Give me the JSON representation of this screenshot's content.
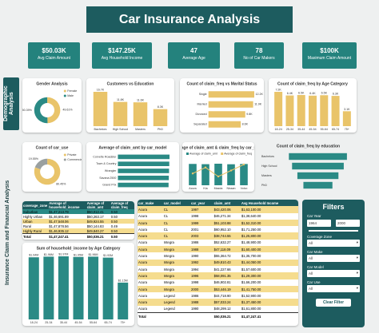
{
  "header": {
    "title": "Car Insurance Analysis"
  },
  "kpis": [
    {
      "value": "$50.03K",
      "label": "Avg Claim Amount"
    },
    {
      "value": "$147.25K",
      "label": "Avg Household Income"
    },
    {
      "value": "47",
      "label": "Average Age"
    },
    {
      "value": "78",
      "label": "No of Car Makers"
    },
    {
      "value": "$100K",
      "label": "Maximum Claim Amount"
    }
  ],
  "sections": [
    "Demographic Analysis",
    "Insurance Claim and Financial Analysis"
  ],
  "chart_data": [
    {
      "type": "donut",
      "title": "Gender Analysis",
      "categories": [
        "Female",
        "Male"
      ],
      "values": [
        49.61,
        50.39
      ],
      "value_labels": [
        "49.61%",
        "50.39%"
      ],
      "colors": [
        "#e9c46a",
        "#2a8a85"
      ]
    },
    {
      "type": "bar",
      "title": "Customers vs Education",
      "categories": [
        "Bachelors",
        "High School",
        "Masters",
        "PhD"
      ],
      "values": [
        16700,
        11800,
        11600,
        8300
      ],
      "value_labels": [
        "16.7K",
        "11.8K",
        "11.6K",
        "8.3K"
      ],
      "color": "#e9c46a"
    },
    {
      "type": "hbar",
      "title": "Count of claim_freq vs Marital Status",
      "categories": [
        "Single",
        "Married",
        "Divorced",
        "Separated"
      ],
      "values": [
        12200,
        11900,
        9800,
        8600
      ],
      "value_labels": [
        "12.2K",
        "11.9K",
        "9.8K",
        "8.6K"
      ],
      "color": "#e9c46a"
    },
    {
      "type": "bar",
      "title": "Count of claim_freq by Age Category",
      "categories": [
        "18-24",
        "25-34",
        "35-44",
        "45-54",
        "55-64",
        "65-74",
        "75+"
      ],
      "values": [
        7180,
        6420,
        6510,
        6380,
        6470,
        6330,
        3120
      ],
      "value_labels": [
        "7.2K",
        "6.4K",
        "6.5K",
        "6.4K",
        "6.5K",
        "6.3K",
        "3.1K"
      ],
      "color": "#e9c46a"
    },
    {
      "type": "donut",
      "title": "Count of car_use",
      "categories": [
        "Private",
        "Commercial"
      ],
      "values": [
        80.45,
        19.55
      ],
      "value_labels": [
        "80.45%",
        "19.55%"
      ],
      "colors": [
        "#e9c46a",
        "#9aa0a0"
      ]
    },
    {
      "type": "hbar",
      "title": "Average of claim_amt by car_model",
      "categories": [
        "Corvette Roadster",
        "Town & Country",
        "Wrangler",
        "Savana 2500",
        "Grand Prix"
      ],
      "values": [
        65100,
        64800,
        64500,
        64200,
        63900
      ],
      "color": "#2a8a85"
    },
    {
      "type": "combo",
      "title": "Average of claim_amt & claim_freq by car_make",
      "categories": [
        "Acura",
        "Kia",
        "Mazda",
        "Nissan",
        "Volvo"
      ],
      "series": [
        {
          "name": "Average of claim_amt",
          "color": "#2a8a85",
          "values": [
            50400,
            49800,
            50900,
            49600,
            50200
          ]
        },
        {
          "name": "Average of claim_freq",
          "color": "#e9c46a",
          "axis": "y2",
          "values": [
            0.49,
            0.51,
            0.48,
            0.5,
            0.52
          ]
        }
      ]
    },
    {
      "type": "funnel",
      "title": "Count of claim_freq by education",
      "categories": [
        "Bachelors",
        "High School",
        "Masters",
        "PhD"
      ],
      "values": [
        8200,
        7300,
        5800,
        4100
      ],
      "color": "#2a8a85"
    },
    {
      "type": "bar",
      "title": "Sum of household_income by Age Category",
      "categories": [
        "18-24",
        "25-34",
        "35-44",
        "45-54",
        "55-64",
        "65-74",
        "75+"
      ],
      "values": [
        1940000,
        1960000,
        1970000,
        1950000,
        1960000,
        1930000,
        1150000
      ],
      "value_labels": [
        "$1.94M",
        "$1.96M",
        "$1.97M",
        "$1.95M",
        "$1.96M",
        "$1.93M",
        "$1.15M"
      ],
      "color": "#2a8a85"
    }
  ],
  "tables": [
    {
      "headers": [
        "coverage_zone",
        "Average of household_income",
        "Average of claim_amt",
        "Average of claim_freq"
      ],
      "highlight_row": 0,
      "rows": [
        [
          "Suburban",
          "$1,47,213.79",
          "$50,012.41",
          "0.50"
        ],
        [
          "Highly Urban",
          "$1,46,691.89",
          "$50,263.17",
          "0.50"
        ],
        [
          "Urban",
          "$1,47,548.06",
          "$49,924.55",
          "0.50"
        ],
        [
          "Rural",
          "$1,47,878.56",
          "$50,144.83",
          "0.49"
        ],
        [
          "Highly Rural",
          "$1,46,935.12",
          "$49,840.27",
          "0.50"
        ]
      ],
      "total": [
        "Total",
        "$1,47,247.41",
        "$50,036.21",
        "0.50"
      ]
    },
    {
      "headers": [
        "car_make",
        "car_model",
        "car_year",
        "claim_amt",
        "Avg Household Income"
      ],
      "rows": [
        [
          "Acura",
          "CL",
          "1997",
          "$43,420.06",
          "$1,63,100.00"
        ],
        [
          "Acura",
          "CL",
          "1998",
          "$46,271.34",
          "$1,38,640.00"
        ],
        [
          "Acura",
          "CL",
          "1999",
          "$51,103.88",
          "$1,52,310.00"
        ],
        [
          "Acura",
          "CL",
          "2001",
          "$60,952.10",
          "$1,71,250.00"
        ],
        [
          "Acura",
          "CL",
          "2003",
          "$38,744.55",
          "$1,25,800.00"
        ],
        [
          "Acura",
          "Integra",
          "1986",
          "$52,632.27",
          "$1,48,900.00"
        ],
        [
          "Acura",
          "Integra",
          "1988",
          "$47,118.09",
          "$1,60,400.00"
        ],
        [
          "Acura",
          "Integra",
          "1990",
          "$55,364.72",
          "$1,35,700.00"
        ],
        [
          "Acura",
          "Integra",
          "1992",
          "$49,810.43",
          "$1,44,050.00"
        ],
        [
          "Acura",
          "Integra",
          "1994",
          "$41,227.66",
          "$1,57,600.00"
        ],
        [
          "Acura",
          "Integra",
          "1996",
          "$58,091.35",
          "$1,29,300.00"
        ],
        [
          "Acura",
          "Integra",
          "1998",
          "$46,902.81",
          "$1,66,200.00"
        ],
        [
          "Acura",
          "Integra",
          "2000",
          "$53,446.19",
          "$1,41,750.00"
        ],
        [
          "Acura",
          "Legend",
          "1986",
          "$44,718.90",
          "$1,52,900.00"
        ],
        [
          "Acura",
          "Legend",
          "1988",
          "$57,033.24",
          "$1,37,450.00"
        ],
        [
          "Acura",
          "Legend",
          "1990",
          "$48,299.12",
          "$1,61,800.00"
        ]
      ],
      "total": [
        "Total",
        "$50,036.21",
        "$1,47,247.41"
      ]
    }
  ],
  "filters": {
    "title": "Filters",
    "range": {
      "label": "Car Year",
      "from": "1964",
      "to": "2000"
    },
    "dropdowns": [
      {
        "label": "Coverage Zone",
        "value": "All"
      },
      {
        "label": "Car Make",
        "value": "All"
      },
      {
        "label": "Car Model",
        "value": "All"
      },
      {
        "label": "Car Use",
        "value": "All"
      }
    ],
    "button": "Clear Filter"
  }
}
